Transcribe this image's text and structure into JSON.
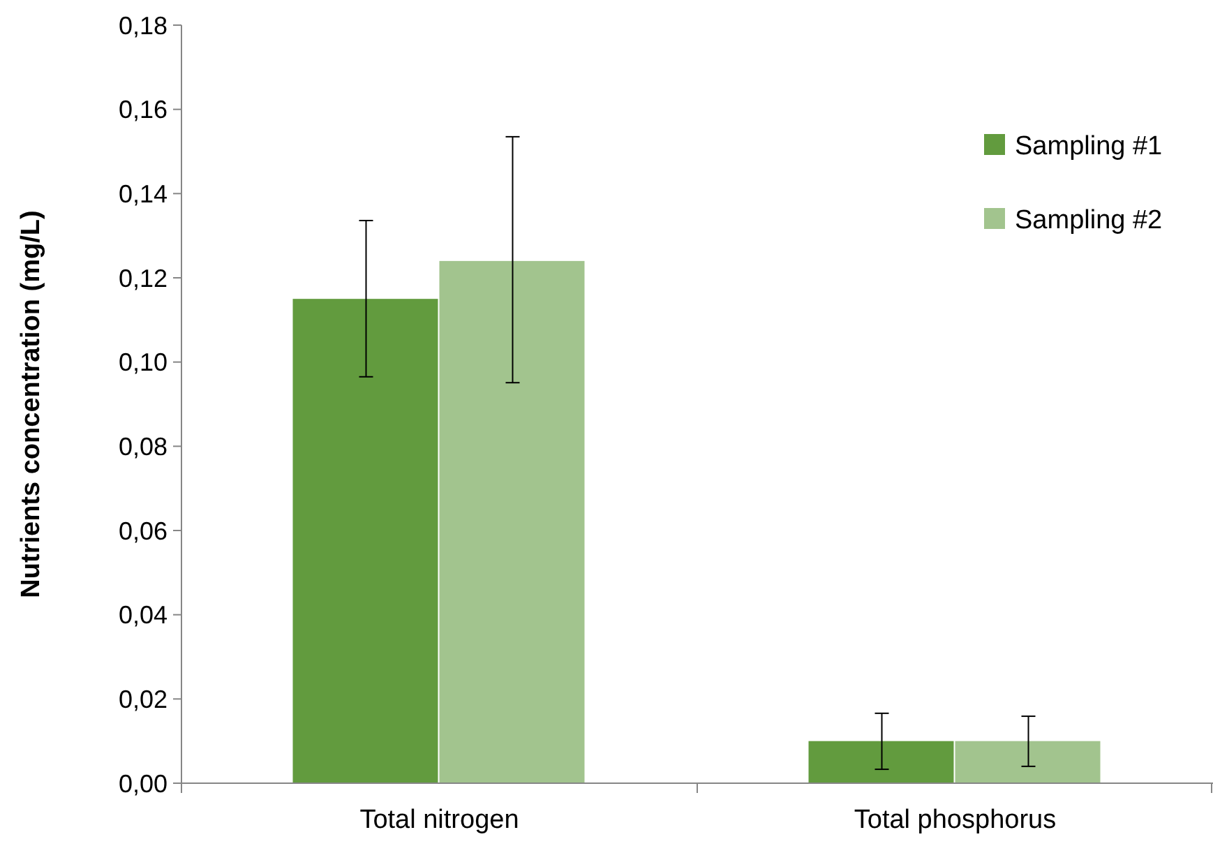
{
  "chart_data": {
    "type": "bar",
    "ylabel": "Nutrients concentration (mg/L)",
    "categories": [
      "Total nitrogen",
      "Total phosphorus"
    ],
    "series": [
      {
        "name": "Sampling #1",
        "color": "#629b3e",
        "values": [
          0.115,
          0.01
        ],
        "errors": [
          [
            0.0965,
            0.1336
          ],
          [
            0.0033,
            0.0166
          ]
        ]
      },
      {
        "name": "Sampling #2",
        "color": "#a2c48e",
        "values": [
          0.124,
          0.01
        ],
        "errors": [
          [
            0.0951,
            0.1535
          ],
          [
            0.004,
            0.0159
          ]
        ]
      }
    ],
    "ylim": [
      0,
      0.18
    ],
    "yticks": [
      {
        "value": 0,
        "label": "0,00"
      },
      {
        "value": 0.02,
        "label": "0,02"
      },
      {
        "value": 0.04,
        "label": "0,04"
      },
      {
        "value": 0.06,
        "label": "0,06"
      },
      {
        "value": 0.08,
        "label": "0,08"
      },
      {
        "value": 0.1,
        "label": "0,10"
      },
      {
        "value": 0.12,
        "label": "0,12"
      },
      {
        "value": 0.14,
        "label": "0,14"
      },
      {
        "value": 0.16,
        "label": "0,16"
      },
      {
        "value": 0.18,
        "label": "0,18"
      }
    ],
    "grid": false,
    "legend": "top right"
  }
}
